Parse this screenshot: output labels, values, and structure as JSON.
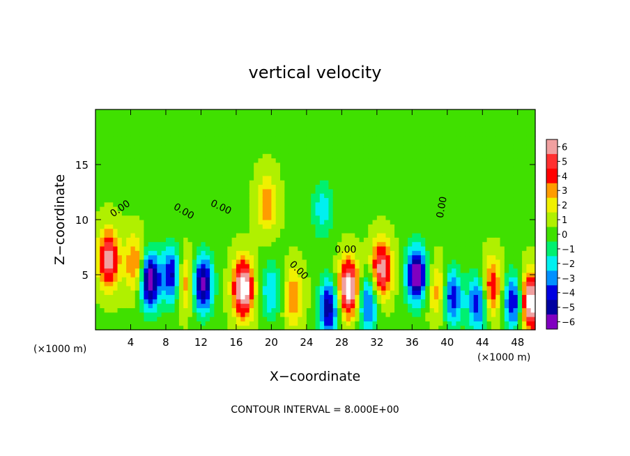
{
  "chart_data": {
    "type": "heatmap",
    "title": "vertical velocity",
    "xlabel": "X−coordinate",
    "ylabel": "Z−coordinate",
    "x_units_left": "(×1000 m)",
    "x_units_right": "(×1000 m)",
    "xlim": [
      0,
      50
    ],
    "ylim": [
      0,
      20
    ],
    "x_ticks": [
      4,
      8,
      12,
      16,
      20,
      24,
      28,
      32,
      36,
      40,
      44,
      48
    ],
    "y_ticks": [
      5,
      10,
      15
    ],
    "colorbar": {
      "ticks": [
        6,
        5,
        4,
        3,
        2,
        1,
        0,
        -1,
        -2,
        -3,
        -4,
        -5,
        -6
      ],
      "tick_labels": [
        "6",
        "5",
        "4",
        "3",
        "2",
        "1",
        "0",
        "−1",
        "−2",
        "−3",
        "−4",
        "−5",
        "−6"
      ],
      "colors": [
        "#f0a0a0",
        "#ff3030",
        "#ff0000",
        "#ff9c00",
        "#f0f000",
        "#b0f000",
        "#40e000",
        "#00f070",
        "#00f0f0",
        "#0090ff",
        "#0000e0",
        "#0000a0",
        "#8000c0"
      ]
    },
    "contour_labels": [
      {
        "text": "0.00",
        "x": 2.0,
        "y": 10.2,
        "angle": -35
      },
      {
        "text": "0.00",
        "x": 8.8,
        "y": 11.0,
        "angle": 30
      },
      {
        "text": "0.00",
        "x": 13.0,
        "y": 11.3,
        "angle": 25
      },
      {
        "text": "0.00",
        "x": 22.0,
        "y": 5.9,
        "angle": 45
      },
      {
        "text": "0.00",
        "x": 27.2,
        "y": 7.0,
        "angle": 0
      },
      {
        "text": "0.00",
        "x": 39.5,
        "y": 10.1,
        "angle": -80
      }
    ],
    "annotation": "CONTOUR INTERVAL = 8.000E+00",
    "features": [
      {
        "x": 1.5,
        "z": 6.5,
        "w": 6.0
      },
      {
        "x": 4.5,
        "z": 6.0,
        "w": 3.5
      },
      {
        "x": 6.2,
        "z": 4.5,
        "w": -7.0
      },
      {
        "x": 8.8,
        "z": 5.0,
        "w": -6.0
      },
      {
        "x": 10.0,
        "z": 4.5,
        "w": 4.0
      },
      {
        "x": 12.2,
        "z": 4.2,
        "w": -6.5
      },
      {
        "x": 16.8,
        "z": 3.8,
        "w": 7.5
      },
      {
        "x": 19.5,
        "z": 11.5,
        "w": 3.0
      },
      {
        "x": 20.0,
        "z": 3.5,
        "w": -3.0
      },
      {
        "x": 22.5,
        "z": 3.0,
        "w": 3.0
      },
      {
        "x": 25.8,
        "z": 11.0,
        "w": -2.5
      },
      {
        "x": 26.5,
        "z": 2.0,
        "w": -5.5
      },
      {
        "x": 28.8,
        "z": 3.8,
        "w": 7.5
      },
      {
        "x": 31.0,
        "z": 2.5,
        "w": -4.5
      },
      {
        "x": 32.5,
        "z": 5.5,
        "w": 6.0
      },
      {
        "x": 36.5,
        "z": 5.0,
        "w": -7.0
      },
      {
        "x": 39.0,
        "z": 3.5,
        "w": 3.0
      },
      {
        "x": 40.5,
        "z": 3.0,
        "w": -5.0
      },
      {
        "x": 43.5,
        "z": 2.5,
        "w": -5.0
      },
      {
        "x": 45.0,
        "z": 3.8,
        "w": 4.5
      },
      {
        "x": 47.5,
        "z": 2.5,
        "w": -5.0
      },
      {
        "x": 49.5,
        "z": 2.5,
        "w": 7.5
      }
    ]
  }
}
